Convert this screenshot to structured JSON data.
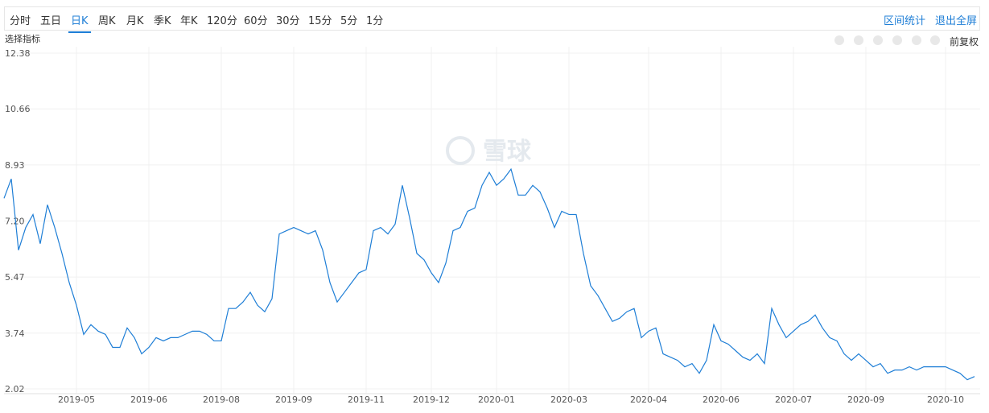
{
  "toolbar": {
    "periods": [
      "分时",
      "五日",
      "日K",
      "周K",
      "月K",
      "季K",
      "年K",
      "120分",
      "60分",
      "30分",
      "15分",
      "5分",
      "1分"
    ],
    "active": 2,
    "actions": [
      "区间统计",
      "退出全屏"
    ]
  },
  "indicator_label": "选择指标",
  "adjust_label": "前复权",
  "chart_data": {
    "type": "line",
    "watermark": "雪球",
    "categories": [
      null,
      null,
      null,
      null,
      null,
      null,
      null,
      null,
      null,
      null,
      "2019-05",
      null,
      null,
      null,
      null,
      null,
      null,
      null,
      null,
      null,
      "2019-06",
      null,
      null,
      null,
      null,
      null,
      null,
      null,
      null,
      null,
      "2019-08",
      null,
      null,
      null,
      null,
      null,
      null,
      null,
      null,
      null,
      "2019-09",
      null,
      null,
      null,
      null,
      null,
      null,
      null,
      null,
      null,
      "2019-11",
      null,
      null,
      null,
      null,
      null,
      null,
      null,
      null,
      "2019-12",
      null,
      null,
      null,
      null,
      null,
      null,
      null,
      null,
      "2020-01",
      null,
      null,
      null,
      null,
      null,
      null,
      null,
      null,
      null,
      "2020-03",
      null,
      null,
      null,
      null,
      null,
      null,
      null,
      null,
      null,
      null,
      "2020-04",
      null,
      null,
      null,
      null,
      null,
      null,
      null,
      null,
      null,
      "2020-06",
      null,
      null,
      null,
      null,
      null,
      null,
      null,
      null,
      null,
      "2020-07",
      null,
      null,
      null,
      null,
      null,
      null,
      null,
      null,
      null,
      "2020-09",
      null,
      null,
      null,
      null,
      null,
      null,
      null,
      null,
      null,
      null,
      "2020-10",
      null,
      null,
      null,
      null
    ],
    "series": [
      {
        "color": "#1e7ed6",
        "values": [
          7.9,
          8.5,
          6.3,
          7.0,
          7.4,
          6.5,
          7.7,
          7.0,
          6.2,
          5.3,
          4.6,
          3.7,
          4.0,
          3.8,
          3.7,
          3.3,
          3.3,
          3.9,
          3.6,
          3.1,
          3.3,
          3.6,
          3.5,
          3.6,
          3.6,
          3.7,
          3.8,
          3.8,
          3.7,
          3.5,
          3.5,
          4.5,
          4.5,
          4.7,
          5.0,
          4.6,
          4.4,
          4.8,
          6.8,
          6.9,
          7.0,
          6.9,
          6.8,
          6.9,
          6.3,
          5.3,
          4.7,
          5.0,
          5.3,
          5.6,
          5.7,
          6.9,
          7.0,
          6.8,
          7.1,
          8.3,
          7.3,
          6.2,
          6.0,
          5.6,
          5.3,
          5.9,
          6.9,
          7.0,
          7.5,
          7.6,
          8.3,
          8.7,
          8.3,
          8.5,
          8.8,
          8.0,
          8.0,
          8.3,
          8.1,
          7.6,
          7.0,
          7.5,
          7.4,
          7.4,
          6.2,
          5.2,
          4.9,
          4.5,
          4.1,
          4.2,
          4.4,
          4.5,
          3.6,
          3.8,
          3.9,
          3.1,
          3.0,
          2.9,
          2.7,
          2.8,
          2.5,
          2.9,
          4.0,
          3.5,
          3.4,
          3.2,
          3.0,
          2.9,
          3.1,
          2.8,
          4.5,
          4.0,
          3.6,
          3.8,
          4.0,
          4.1,
          4.3,
          3.9,
          3.6,
          3.5,
          3.1,
          2.9,
          3.1,
          2.9,
          2.7,
          2.8,
          2.5,
          2.6,
          2.6,
          2.7,
          2.6,
          2.7,
          2.7,
          2.7,
          2.7,
          2.6,
          2.5,
          2.3,
          2.4
        ]
      }
    ],
    "ylim": [
      2.02,
      12.38
    ],
    "yticks": [
      2.02,
      3.74,
      5.47,
      {
        "value": 7.2,
        "label": "7.20"
      },
      8.93,
      10.66,
      12.38
    ],
    "grid": true
  }
}
